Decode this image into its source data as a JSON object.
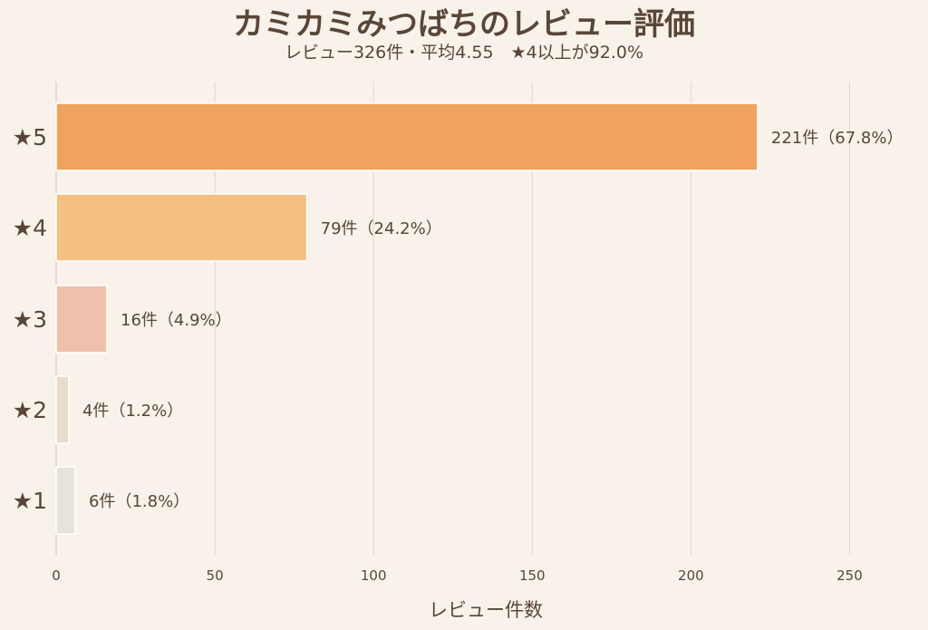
{
  "chart_data": {
    "type": "bar",
    "orientation": "horizontal",
    "title": "カミカミみつばちのレビュー評価",
    "subtitle": "レビュー326件・平均4.55　★4以上が92.0%",
    "xlabel": "レビュー件数",
    "ylabel": "",
    "xlim": [
      0,
      265
    ],
    "xticks": [
      0,
      50,
      100,
      150,
      200,
      250
    ],
    "grid": "vertical",
    "categories": [
      "★5",
      "★4",
      "★3",
      "★2",
      "★1"
    ],
    "values": [
      221,
      79,
      16,
      4,
      6
    ],
    "labels": [
      "221件（67.8%）",
      "79件（24.2%）",
      "16件（4.9%）",
      "4件（1.2%）",
      "6件（1.8%）"
    ],
    "colors": [
      "#f0a35c",
      "#f5bf82",
      "#efc1aa",
      "#e9dbcb",
      "#e6e3dd"
    ]
  }
}
